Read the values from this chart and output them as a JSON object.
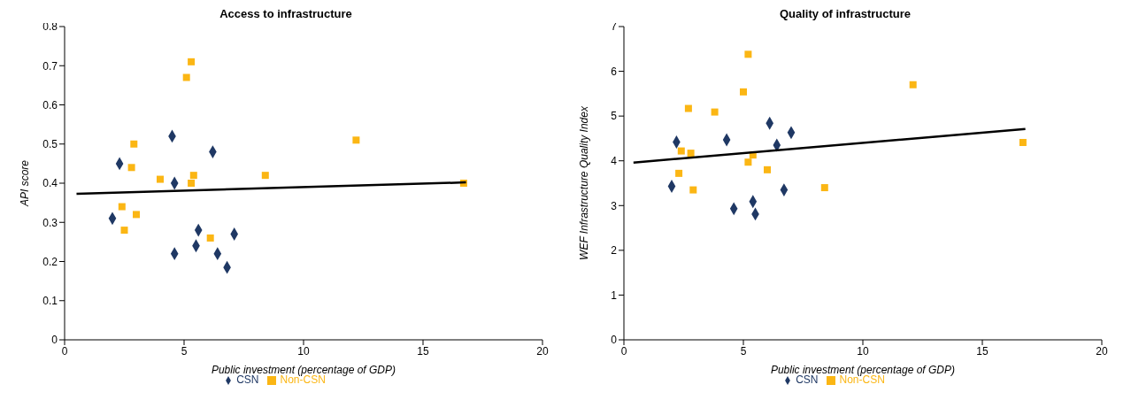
{
  "chart_data": [
    {
      "type": "scatter",
      "title": "Access to infrastructure",
      "xlabel": "Public investment (percentage of GDP)",
      "ylabel": "API score",
      "xlim": [
        0,
        20
      ],
      "xticks": [
        0,
        5,
        10,
        15,
        20
      ],
      "ylim": [
        0,
        0.8
      ],
      "yticks": [
        0,
        0.1,
        0.2,
        0.3,
        0.4,
        0.5,
        0.6,
        0.7,
        0.8
      ],
      "grid": false,
      "legend": "bottom",
      "series": [
        {
          "name": "CSN",
          "color": "#1f3864",
          "marker": "diamond",
          "x": [
            2.0,
            2.3,
            4.5,
            4.6,
            6.2,
            4.6,
            5.6,
            5.5,
            6.4,
            6.8,
            7.1
          ],
          "values": [
            0.31,
            0.45,
            0.52,
            0.4,
            0.48,
            0.22,
            0.28,
            0.24,
            0.22,
            0.185,
            0.27
          ]
        },
        {
          "name": "Non-CSN",
          "color": "#fbb614",
          "marker": "square",
          "x": [
            5.3,
            5.1,
            2.9,
            2.8,
            4.0,
            5.4,
            5.3,
            12.2,
            8.4,
            16.7,
            2.4,
            3.0,
            2.5,
            6.1
          ],
          "values": [
            0.71,
            0.67,
            0.5,
            0.44,
            0.41,
            0.42,
            0.4,
            0.51,
            0.42,
            0.4,
            0.34,
            0.32,
            0.28,
            0.26
          ]
        },
        {
          "type": "line",
          "color": "#000000",
          "marker": "none",
          "x": [
            0.5,
            16.8
          ],
          "values": [
            0.373,
            0.402
          ]
        }
      ]
    },
    {
      "type": "scatter",
      "title": "Quality of infrastructure",
      "xlabel": "Public investment (percentage of GDP)",
      "ylabel": "WEF Infrastructure Quality Index",
      "xlim": [
        0,
        20
      ],
      "xticks": [
        0,
        5,
        10,
        15,
        20
      ],
      "ylim": [
        0,
        7
      ],
      "yticks": [
        0,
        1,
        2,
        3,
        4,
        5,
        6,
        7
      ],
      "grid": false,
      "legend": "bottom",
      "series": [
        {
          "name": "CSN",
          "color": "#1f3864",
          "marker": "diamond",
          "x": [
            2.2,
            2.0,
            4.3,
            4.6,
            5.4,
            5.5,
            6.1,
            6.4,
            7.0,
            6.7
          ],
          "values": [
            4.42,
            3.43,
            4.47,
            2.93,
            3.09,
            2.81,
            4.84,
            4.35,
            4.63,
            3.35
          ]
        },
        {
          "name": "Non-CSN",
          "color": "#fbb614",
          "marker": "square",
          "x": [
            5.2,
            5.0,
            2.7,
            3.8,
            2.4,
            2.8,
            5.4,
            5.2,
            6.0,
            2.3,
            2.9,
            8.4,
            16.7,
            12.1
          ],
          "values": [
            6.38,
            5.54,
            5.17,
            5.09,
            4.22,
            4.17,
            4.13,
            3.97,
            3.8,
            3.72,
            3.35,
            3.4,
            4.41,
            5.7
          ]
        },
        {
          "type": "line",
          "color": "#000000",
          "marker": "none",
          "x": [
            0.4,
            16.8
          ],
          "values": [
            3.96,
            4.71
          ]
        }
      ]
    }
  ]
}
